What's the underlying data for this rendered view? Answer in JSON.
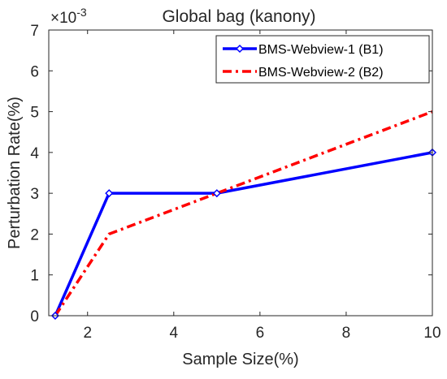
{
  "chart_data": {
    "type": "line",
    "title": "Global bag (kanony)",
    "xlabel": "Sample Size(%)",
    "ylabel": "Perturbation Rate(%)",
    "xlim": [
      1.1,
      10
    ],
    "ylim": [
      0,
      7
    ],
    "xticks": [
      2,
      4,
      6,
      8,
      10
    ],
    "yticks": [
      0,
      1,
      2,
      3,
      4,
      5,
      6,
      7
    ],
    "y_exponent_label": "×10",
    "y_exponent_power": "-3",
    "grid": false,
    "legend_position": "top-right",
    "series": [
      {
        "name": "BMS-Webview-1 (B1)",
        "color": "#0000ff",
        "line_style": "solid",
        "marker": "diamond",
        "x": [
          1.25,
          2.5,
          5,
          10
        ],
        "y": [
          0,
          3,
          3,
          4
        ]
      },
      {
        "name": "BMS-Webview-2 (B2)",
        "color": "#ff0000",
        "line_style": "dashdot",
        "marker": "none",
        "x": [
          1.25,
          2.5,
          5,
          10
        ],
        "y": [
          0,
          2,
          3,
          5
        ]
      }
    ]
  }
}
